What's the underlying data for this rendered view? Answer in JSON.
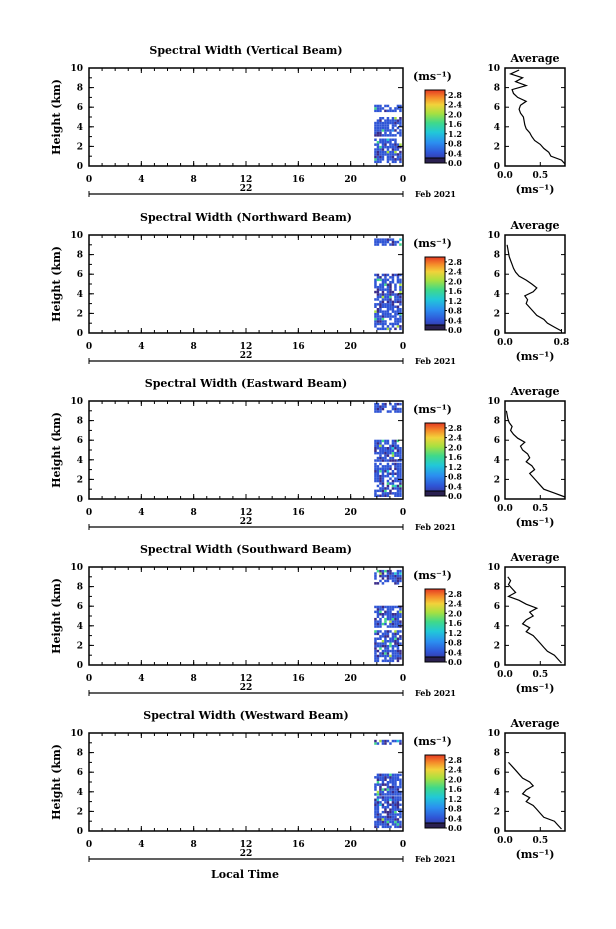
{
  "footer": {
    "xlabel": "Local Time"
  },
  "chart_data": [
    {
      "type": "heatmap",
      "title": "Spectral Width (Vertical Beam)",
      "ylabel": "Height (km)",
      "xlabel": "Local Time",
      "xlim": [
        0,
        24
      ],
      "ylim": [
        0,
        10
      ],
      "x_ticks": [
        "0",
        "4",
        "8",
        "12",
        "16",
        "20",
        "0"
      ],
      "y_ticks": [
        "0",
        "2",
        "4",
        "6",
        "8",
        "10"
      ],
      "date_label": "22",
      "month_label": "Feb 2021",
      "colorbar": {
        "unit": "(ms⁻¹)",
        "range": [
          0,
          3.0
        ],
        "labels": [
          "0.0",
          "0.4",
          "0.8",
          "1.2",
          "1.6",
          "2.0",
          "2.4",
          "2.8"
        ]
      },
      "data_region": {
        "x_start": 21.8,
        "x_end": 23.8,
        "y_ranges": [
          [
            0.3,
            2.6
          ],
          [
            3.0,
            5.0
          ],
          [
            5.5,
            6.2
          ]
        ],
        "typical_width": 0.5
      },
      "average": {
        "title": "Average",
        "xlabel": "(ms⁻¹)",
        "x_ticks": [
          "0.0",
          "0.5"
        ],
        "xlim": [
          0,
          0.85
        ],
        "ylim": [
          0,
          10
        ],
        "profile": [
          [
            0.88,
            0.2
          ],
          [
            0.8,
            0.6
          ],
          [
            0.65,
            1.0
          ],
          [
            0.62,
            1.4
          ],
          [
            0.55,
            1.8
          ],
          [
            0.5,
            2.2
          ],
          [
            0.42,
            2.6
          ],
          [
            0.38,
            3.0
          ],
          [
            0.35,
            3.4
          ],
          [
            0.3,
            3.8
          ],
          [
            0.28,
            4.2
          ],
          [
            0.27,
            4.6
          ],
          [
            0.26,
            5.0
          ],
          [
            0.22,
            5.4
          ],
          [
            0.2,
            5.8
          ],
          [
            0.22,
            6.2
          ],
          [
            0.3,
            6.6
          ],
          [
            0.18,
            7.0
          ],
          [
            0.12,
            7.4
          ],
          [
            0.1,
            7.8
          ],
          [
            0.3,
            8.2
          ],
          [
            0.15,
            8.6
          ],
          [
            0.25,
            9.0
          ],
          [
            0.08,
            9.4
          ],
          [
            0.2,
            9.8
          ]
        ]
      }
    },
    {
      "type": "heatmap",
      "title": "Spectral Width (Northward Beam)",
      "ylabel": "Height (km)",
      "xlabel": "Local Time",
      "xlim": [
        0,
        24
      ],
      "ylim": [
        0,
        10
      ],
      "x_ticks": [
        "0",
        "4",
        "8",
        "12",
        "16",
        "20",
        "0"
      ],
      "y_ticks": [
        "0",
        "2",
        "4",
        "6",
        "8",
        "10"
      ],
      "date_label": "22",
      "month_label": "Feb 2021",
      "colorbar": {
        "unit": "(ms⁻¹)",
        "range": [
          0,
          3.0
        ],
        "labels": [
          "0.0",
          "0.4",
          "0.8",
          "1.2",
          "1.6",
          "2.0",
          "2.4",
          "2.8"
        ]
      },
      "data_region": {
        "x_start": 21.8,
        "x_end": 23.8,
        "y_ranges": [
          [
            0.3,
            6.0
          ],
          [
            8.9,
            9.6
          ]
        ],
        "typical_width": 0.5
      },
      "average": {
        "title": "Average",
        "xlabel": "(ms⁻¹)",
        "x_ticks": [
          "0.0",
          "0.8"
        ],
        "xlim": [
          0,
          0.85
        ],
        "ylim": [
          0,
          10
        ],
        "profile": [
          [
            0.8,
            0.2
          ],
          [
            0.7,
            0.6
          ],
          [
            0.6,
            1.0
          ],
          [
            0.55,
            1.4
          ],
          [
            0.45,
            1.8
          ],
          [
            0.4,
            2.2
          ],
          [
            0.35,
            2.6
          ],
          [
            0.3,
            3.0
          ],
          [
            0.32,
            3.4
          ],
          [
            0.28,
            3.8
          ],
          [
            0.4,
            4.2
          ],
          [
            0.45,
            4.6
          ],
          [
            0.38,
            5.0
          ],
          [
            0.3,
            5.4
          ],
          [
            0.2,
            5.8
          ],
          [
            0.15,
            6.2
          ],
          [
            0.12,
            6.6
          ],
          [
            0.1,
            7.0
          ],
          [
            0.08,
            7.4
          ],
          [
            0.06,
            7.8
          ],
          [
            0.05,
            8.2
          ],
          [
            0.04,
            8.6
          ],
          [
            0.03,
            9.0
          ]
        ]
      }
    },
    {
      "type": "heatmap",
      "title": "Spectral Width (Eastward Beam)",
      "ylabel": "Height (km)",
      "xlabel": "Local Time",
      "xlim": [
        0,
        24
      ],
      "ylim": [
        0,
        10
      ],
      "x_ticks": [
        "0",
        "4",
        "8",
        "12",
        "16",
        "20",
        "0"
      ],
      "y_ticks": [
        "0",
        "2",
        "4",
        "6",
        "8",
        "10"
      ],
      "date_label": "22",
      "month_label": "Feb 2021",
      "colorbar": {
        "unit": "(ms⁻¹)",
        "range": [
          0,
          3.0
        ],
        "labels": [
          "0.0",
          "0.4",
          "0.8",
          "1.2",
          "1.6",
          "2.0",
          "2.4",
          "2.8"
        ]
      },
      "data_region": {
        "x_start": 21.8,
        "x_end": 23.8,
        "y_ranges": [
          [
            0.2,
            3.5
          ],
          [
            3.8,
            6.0
          ],
          [
            8.8,
            9.6
          ]
        ],
        "typical_width": 0.5
      },
      "average": {
        "title": "Average",
        "xlabel": "(ms⁻¹)",
        "x_ticks": [
          "0.0",
          "0.5"
        ],
        "xlim": [
          0,
          0.85
        ],
        "ylim": [
          0,
          10
        ],
        "profile": [
          [
            0.85,
            0.2
          ],
          [
            0.7,
            0.6
          ],
          [
            0.55,
            1.0
          ],
          [
            0.5,
            1.4
          ],
          [
            0.45,
            1.8
          ],
          [
            0.4,
            2.2
          ],
          [
            0.35,
            2.6
          ],
          [
            0.42,
            3.0
          ],
          [
            0.38,
            3.4
          ],
          [
            0.3,
            3.8
          ],
          [
            0.35,
            4.2
          ],
          [
            0.32,
            4.6
          ],
          [
            0.25,
            5.0
          ],
          [
            0.22,
            5.4
          ],
          [
            0.28,
            5.8
          ],
          [
            0.18,
            6.2
          ],
          [
            0.12,
            6.6
          ],
          [
            0.08,
            7.0
          ],
          [
            0.1,
            7.4
          ],
          [
            0.06,
            7.8
          ],
          [
            0.04,
            8.2
          ],
          [
            0.03,
            8.6
          ],
          [
            0.02,
            9.0
          ]
        ]
      }
    },
    {
      "type": "heatmap",
      "title": "Spectral Width (Southward Beam)",
      "ylabel": "Height (km)",
      "xlabel": "Local Time",
      "xlim": [
        0,
        24
      ],
      "ylim": [
        0,
        10
      ],
      "x_ticks": [
        "0",
        "4",
        "8",
        "12",
        "16",
        "20",
        "0"
      ],
      "y_ticks": [
        "0",
        "2",
        "4",
        "6",
        "8",
        "10"
      ],
      "date_label": "22",
      "month_label": "Feb 2021",
      "colorbar": {
        "unit": "(ms⁻¹)",
        "range": [
          0,
          3.0
        ],
        "labels": [
          "0.0",
          "0.4",
          "0.8",
          "1.2",
          "1.6",
          "2.0",
          "2.4",
          "2.8"
        ]
      },
      "data_region": {
        "x_start": 21.8,
        "x_end": 23.8,
        "y_ranges": [
          [
            0.3,
            3.5
          ],
          [
            3.8,
            6.0
          ],
          [
            8.2,
            9.6
          ]
        ],
        "typical_width": 0.5
      },
      "average": {
        "title": "Average",
        "xlabel": "(ms⁻¹)",
        "x_ticks": [
          "0.0",
          "0.5"
        ],
        "xlim": [
          0,
          0.85
        ],
        "ylim": [
          0,
          10
        ],
        "profile": [
          [
            0.8,
            0.2
          ],
          [
            0.75,
            0.6
          ],
          [
            0.7,
            1.0
          ],
          [
            0.6,
            1.4
          ],
          [
            0.55,
            1.8
          ],
          [
            0.5,
            2.2
          ],
          [
            0.45,
            2.6
          ],
          [
            0.4,
            3.0
          ],
          [
            0.3,
            3.4
          ],
          [
            0.35,
            3.8
          ],
          [
            0.25,
            4.2
          ],
          [
            0.3,
            4.6
          ],
          [
            0.4,
            5.0
          ],
          [
            0.35,
            5.4
          ],
          [
            0.45,
            5.8
          ],
          [
            0.3,
            6.2
          ],
          [
            0.2,
            6.6
          ],
          [
            0.05,
            7.0
          ],
          [
            0.15,
            7.4
          ],
          [
            0.1,
            7.8
          ],
          [
            0.05,
            8.2
          ],
          [
            0.08,
            8.6
          ],
          [
            0.04,
            9.0
          ]
        ]
      }
    },
    {
      "type": "heatmap",
      "title": "Spectral Width (Westward Beam)",
      "ylabel": "Height (km)",
      "xlabel": "Local Time",
      "xlim": [
        0,
        24
      ],
      "ylim": [
        0,
        10
      ],
      "x_ticks": [
        "0",
        "4",
        "8",
        "12",
        "16",
        "20",
        "0"
      ],
      "y_ticks": [
        "0",
        "2",
        "4",
        "6",
        "8",
        "10"
      ],
      "date_label": "22",
      "month_label": "Feb 2021",
      "colorbar": {
        "unit": "(ms⁻¹)",
        "range": [
          0,
          3.0
        ],
        "labels": [
          "0.0",
          "0.4",
          "0.8",
          "1.2",
          "1.6",
          "2.0",
          "2.4",
          "2.8"
        ]
      },
      "data_region": {
        "x_start": 21.8,
        "x_end": 23.8,
        "y_ranges": [
          [
            0.3,
            3.5
          ],
          [
            3.6,
            5.8
          ],
          [
            8.8,
            9.3
          ]
        ],
        "typical_width": 0.5
      },
      "average": {
        "title": "Average",
        "xlabel": "(ms⁻¹)",
        "x_ticks": [
          "0.0",
          "0.5"
        ],
        "xlim": [
          0,
          0.85
        ],
        "ylim": [
          0,
          10
        ],
        "profile": [
          [
            0.8,
            0.2
          ],
          [
            0.75,
            0.6
          ],
          [
            0.7,
            1.0
          ],
          [
            0.55,
            1.4
          ],
          [
            0.5,
            1.8
          ],
          [
            0.45,
            2.2
          ],
          [
            0.4,
            2.6
          ],
          [
            0.3,
            3.0
          ],
          [
            0.35,
            3.4
          ],
          [
            0.25,
            3.8
          ],
          [
            0.3,
            4.2
          ],
          [
            0.4,
            4.6
          ],
          [
            0.35,
            5.0
          ],
          [
            0.25,
            5.4
          ],
          [
            0.2,
            5.8
          ],
          [
            0.15,
            6.2
          ],
          [
            0.1,
            6.6
          ],
          [
            0.05,
            7.0
          ]
        ]
      }
    }
  ]
}
